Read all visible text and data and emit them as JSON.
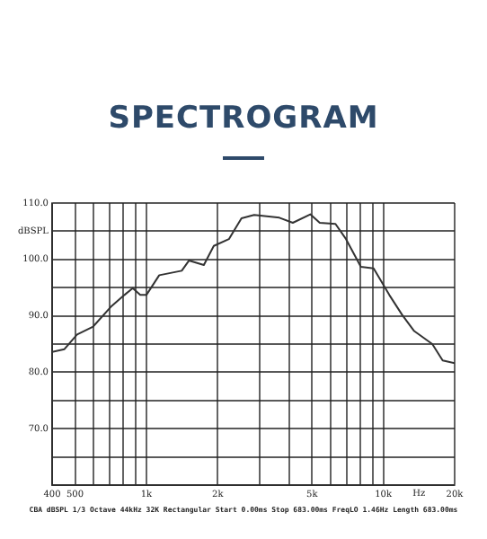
{
  "chart_data": {
    "type": "line",
    "title": "SPECTROGRAM",
    "xlabel": "Hz",
    "annotations": [
      "CBA dBSPL   1/3 Octave 44kHz 32K Rectangular Start 0.00ms Stop 683.00ms FreqLO 1.46Hz Length 683.00ms"
    ],
    "x": [
      400,
      451,
      510,
      596,
      708,
      808,
      876,
      942,
      1000,
      1133,
      1410,
      1512,
      1748,
      1925,
      2230,
      2520,
      2850,
      3640,
      4150,
      4920,
      5390,
      6280,
      6960,
      8040,
      9100,
      10600,
      12000,
      13500,
      16100,
      17800,
      20000
    ],
    "series": [
      {
        "color": "#333333",
        "values": [
          83.6,
          84.1,
          86.7,
          88.1,
          91.6,
          93.7,
          94.9,
          93.7,
          93.7,
          97.2,
          98.0,
          99.8,
          99.0,
          102.4,
          103.6,
          107.3,
          107.9,
          107.4,
          106.5,
          108.0,
          106.5,
          106.3,
          103.6,
          98.7,
          98.4,
          93.7,
          90.2,
          87.3,
          85.0,
          82.1,
          81.6
        ]
      }
    ],
    "log": "x",
    "xlim": [
      400,
      20000
    ],
    "xticks": [
      400,
      500,
      {
        "value": 600,
        "label": null
      },
      {
        "value": 700,
        "label": null
      },
      {
        "value": 800,
        "label": null
      },
      {
        "value": 900,
        "label": null
      },
      {
        "value": 1000,
        "label": "1k"
      },
      {
        "value": 2000,
        "label": "2k"
      },
      {
        "value": 3000,
        "label": null
      },
      {
        "value": 4000,
        "label": null
      },
      {
        "value": 5000,
        "label": "5k"
      },
      {
        "value": 6000,
        "label": null
      },
      {
        "value": 7000,
        "label": null
      },
      {
        "value": 8000,
        "label": null
      },
      {
        "value": 9000,
        "label": null
      },
      {
        "value": 10000,
        "label": "10k"
      },
      {
        "value": 20000,
        "label": "20k"
      }
    ],
    "ylim": [
      60,
      110
    ],
    "yticks": [
      {
        "value": 60,
        "label": null
      },
      {
        "value": 65,
        "label": null
      },
      {
        "value": 70,
        "label": "70.0"
      },
      {
        "value": 75,
        "label": null
      },
      {
        "value": 80,
        "label": "80.0"
      },
      {
        "value": 85,
        "label": null
      },
      {
        "value": 90,
        "label": "90.0"
      },
      {
        "value": 95,
        "label": null
      },
      {
        "value": 100,
        "label": "100.0"
      },
      {
        "value": 105,
        "label": "dBSPL"
      },
      {
        "value": 110,
        "label": "110.0"
      }
    ],
    "grid": true,
    "legend": false,
    "marker": "none",
    "line_style": "solid"
  }
}
